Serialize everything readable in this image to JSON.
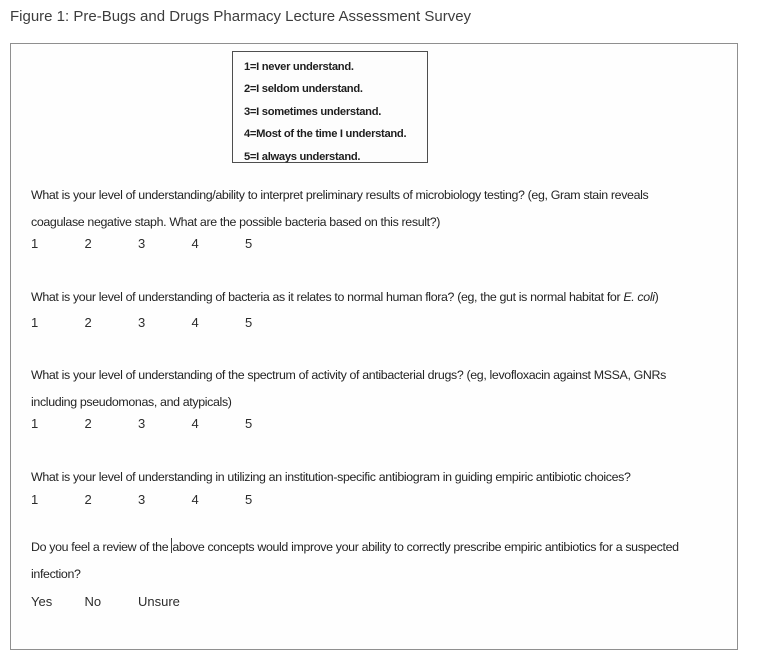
{
  "page": {
    "title": "Figure 1: Pre-Bugs and Drugs Pharmacy Lecture Assessment Survey"
  },
  "scale_legend": {
    "items": [
      "1=I never understand.",
      "2=I seldom understand.",
      "3=I sometimes understand.",
      "4=Most of the time I understand.",
      "5=I always understand."
    ]
  },
  "questions": {
    "q1": {
      "text": "What is your level of understanding/ability to interpret preliminary results of microbiology testing? (eg, Gram stain reveals\ncoagulase negative staph. What are the possible bacteria based on this result?)",
      "options": [
        "1",
        "2",
        "3",
        "4",
        "5"
      ]
    },
    "q2": {
      "text_pre": "What is your level of understanding of bacteria as it relates to normal human flora? (eg, the gut is normal habitat for ",
      "text_italic": "E. coli",
      "text_post": ")",
      "options": [
        "1",
        "2",
        "3",
        "4",
        "5"
      ]
    },
    "q3": {
      "text": "What is your level of understanding of the spectrum of activity of antibacterial drugs? (eg, levofloxacin against MSSA, GNRs\nincluding pseudomonas, and atypicals)",
      "options": [
        "1",
        "2",
        "3",
        "4",
        "5"
      ]
    },
    "q4": {
      "text": "What is your level of understanding in utilizing an institution-specific antibiogram in guiding empiric antibiotic choices?",
      "options": [
        "1",
        "2",
        "3",
        "4",
        "5"
      ]
    },
    "q5": {
      "text_pre_cursor": "Do you feel a review of the ",
      "text_post_cursor": "above concepts would improve your ability to correctly prescribe empiric antibiotics for a suspected\ninfection?",
      "options": [
        "Yes",
        "No",
        "Unsure"
      ]
    }
  },
  "colors": {
    "text": "#262626",
    "title_text": "#3d3d3d",
    "outer_border": "#8f8f8f",
    "legend_border": "#4e4e4e",
    "background": "#ffffff"
  }
}
